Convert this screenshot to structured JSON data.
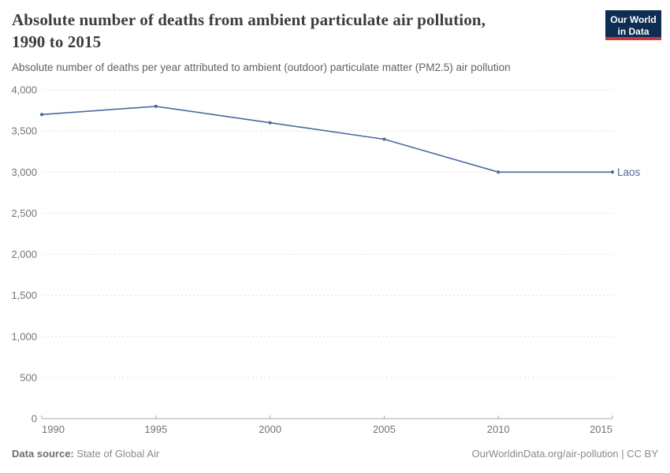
{
  "header": {
    "title_line1": "Absolute number of deaths from ambient particulate air pollution,",
    "title_line2": "1990 to 2015",
    "subtitle": "Absolute number of deaths per year attributed to ambient (outdoor) particulate matter (PM2.5) air pollution",
    "logo": {
      "line1": "Our World",
      "line2": "in Data"
    }
  },
  "footer": {
    "source_label": "Data source:",
    "source_value": "State of Global Air",
    "attribution": "OurWorldinData.org/air-pollution | CC BY"
  },
  "colors": {
    "series_line": "#4C6A9C",
    "grid": "#dedede",
    "axis": "#a8a8a8",
    "tick_label": "#737373",
    "logo_navy": "#0D2E52",
    "logo_red": "#C5393F"
  },
  "chart_data": {
    "type": "line",
    "title": "Absolute number of deaths from ambient particulate air pollution, 1990 to 2015",
    "subtitle": "Absolute number of deaths per year attributed to ambient (outdoor) particulate matter (PM2.5) air pollution",
    "x": [
      1990,
      1995,
      2000,
      2005,
      2010,
      2015
    ],
    "series": [
      {
        "name": "Laos",
        "color": "#4C6A9C",
        "values": [
          3700,
          3800,
          3600,
          3400,
          3000,
          3000
        ]
      }
    ],
    "xlabel": "",
    "ylabel": "",
    "xlim": [
      1990,
      2015
    ],
    "ylim": [
      0,
      4000
    ],
    "ytick_step": 500,
    "grid": "horizontal-dashed",
    "legend_position": "end-of-line-label"
  }
}
